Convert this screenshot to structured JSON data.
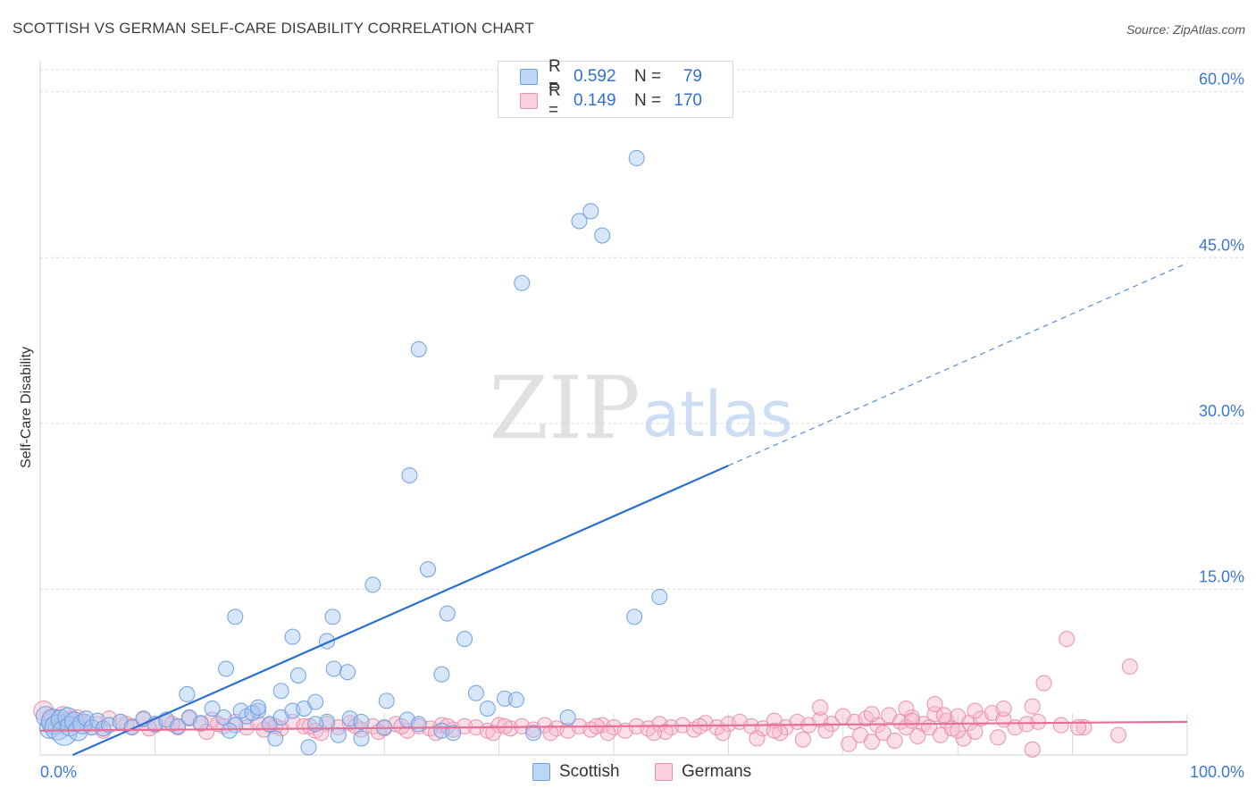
{
  "header": {
    "title": "SCOTTISH VS GERMAN SELF-CARE DISABILITY CORRELATION CHART",
    "source": "Source: ZipAtlas.com"
  },
  "watermark": {
    "zip": "ZIP",
    "atlas": "atlas"
  },
  "legend": {
    "series": [
      {
        "name": "Scottish",
        "r_label": "R =",
        "r_value": "0.592",
        "n_label": "N =",
        "n_value": "79",
        "fill": "#a9c8f2",
        "stroke": "#6d9fe0"
      },
      {
        "name": "Germans",
        "r_label": "R =",
        "r_value": "0.149",
        "n_label": "N =",
        "n_value": "170",
        "fill": "#f7b9cb",
        "stroke": "#e890ab"
      }
    ]
  },
  "colors": {
    "scottish_line": "#2a6fd3",
    "germans_line": "#e46f97",
    "tick_label": "#3a78d4",
    "grid": "#dcdcdc"
  },
  "chart_data": {
    "type": "scatter",
    "title": "SCOTTISH VS GERMAN SELF-CARE DISABILITY CORRELATION CHART",
    "xlabel": "",
    "ylabel": "Self-Care Disability",
    "xlim": [
      0,
      100
    ],
    "ylim": [
      0,
      62
    ],
    "x_tick_labels": [
      "0.0%",
      "100.0%"
    ],
    "y_ticks": [
      15,
      30,
      45,
      60
    ],
    "y_tick_labels": [
      "15.0%",
      "30.0%",
      "45.0%",
      "60.0%"
    ],
    "grid": true,
    "series": [
      {
        "name": "Scottish",
        "trend": {
          "x0": 0,
          "y0": -1.3,
          "x1": 100,
          "y1": 44.5,
          "solid_until_x": 60
        },
        "points": [
          [
            0.5,
            3.5,
            2
          ],
          [
            0.8,
            2.4,
            2
          ],
          [
            1.2,
            3.0,
            3
          ],
          [
            1.5,
            2.5,
            3
          ],
          [
            1.8,
            3.2,
            2
          ],
          [
            2.1,
            2.0,
            3
          ],
          [
            2.4,
            3.4,
            2
          ],
          [
            2.6,
            2.6,
            2
          ],
          [
            3.0,
            3.0,
            2
          ],
          [
            3.3,
            2.2,
            2
          ],
          [
            3.7,
            2.8,
            2
          ],
          [
            4.0,
            3.3,
            1
          ],
          [
            4.5,
            2.5,
            1
          ],
          [
            5.0,
            3.1,
            1
          ],
          [
            5.5,
            2.4,
            1
          ],
          [
            6.0,
            2.7,
            1
          ],
          [
            7.0,
            3.0,
            1
          ],
          [
            8.0,
            2.5,
            1
          ],
          [
            9.0,
            3.3,
            1
          ],
          [
            10.0,
            2.8,
            1
          ],
          [
            11.0,
            3.2,
            1
          ],
          [
            12.0,
            2.6,
            1
          ],
          [
            13.0,
            3.4,
            1
          ],
          [
            14.0,
            2.9,
            1
          ],
          [
            16.0,
            3.4,
            1
          ],
          [
            17.0,
            2.7,
            1
          ],
          [
            15.0,
            4.2,
            1
          ],
          [
            16.5,
            2.2,
            1
          ],
          [
            18.0,
            3.5,
            1
          ],
          [
            19.0,
            4.0,
            1
          ],
          [
            20.0,
            2.8,
            1
          ],
          [
            21.0,
            3.4,
            1
          ],
          [
            25.0,
            3.0,
            1
          ],
          [
            27.0,
            3.3,
            1
          ],
          [
            30.0,
            2.5,
            1
          ],
          [
            32.0,
            3.2,
            1
          ],
          [
            33.0,
            2.8,
            1
          ],
          [
            35.0,
            2.2,
            1
          ],
          [
            43.0,
            2.0,
            1
          ],
          [
            46.0,
            3.4,
            1
          ],
          [
            17.5,
            4.0,
            1
          ],
          [
            18.5,
            3.8,
            1
          ],
          [
            22.0,
            4.0,
            1
          ],
          [
            23.0,
            4.2,
            1
          ],
          [
            24.0,
            2.8,
            1
          ],
          [
            26.0,
            1.8,
            1
          ],
          [
            28.0,
            3.0,
            1
          ],
          [
            36.0,
            2.0,
            1
          ],
          [
            12.8,
            5.5,
            1
          ],
          [
            16.2,
            7.8,
            1
          ],
          [
            17.0,
            12.5,
            1
          ],
          [
            19.0,
            4.3,
            1
          ],
          [
            21.0,
            5.8,
            1
          ],
          [
            22.0,
            10.7,
            1
          ],
          [
            22.5,
            7.2,
            1
          ],
          [
            24.0,
            4.8,
            1
          ],
          [
            25.0,
            10.3,
            1
          ],
          [
            25.5,
            12.5,
            1
          ],
          [
            25.6,
            7.8,
            1
          ],
          [
            26.8,
            7.5,
            1
          ],
          [
            30.2,
            4.9,
            1
          ],
          [
            32.2,
            25.3,
            1
          ],
          [
            33.0,
            36.7,
            1
          ],
          [
            33.8,
            16.8,
            1
          ],
          [
            35.0,
            7.3,
            1
          ],
          [
            35.5,
            12.8,
            1
          ],
          [
            37.0,
            10.5,
            1
          ],
          [
            38.0,
            5.6,
            1
          ],
          [
            39.0,
            4.2,
            1
          ],
          [
            40.5,
            5.1,
            1
          ],
          [
            41.5,
            5.0,
            1
          ],
          [
            42.0,
            42.7,
            1
          ],
          [
            47.0,
            48.3,
            1
          ],
          [
            48.0,
            49.2,
            1
          ],
          [
            49.0,
            47.0,
            1
          ],
          [
            52.0,
            54.0,
            1
          ],
          [
            51.8,
            12.5,
            1
          ],
          [
            54.0,
            14.3,
            1
          ],
          [
            29.0,
            15.4,
            1
          ],
          [
            20.5,
            1.5,
            1
          ],
          [
            23.4,
            0.7,
            1
          ],
          [
            28.0,
            1.5,
            1
          ]
        ]
      },
      {
        "name": "Germans",
        "trend": {
          "x0": 0,
          "y0": 2.2,
          "x1": 100,
          "y1": 3.0
        },
        "points": [
          [
            0.3,
            4.0,
            2
          ],
          [
            1.0,
            3.3,
            2
          ],
          [
            1.5,
            2.8,
            2
          ],
          [
            2.0,
            3.5,
            2
          ],
          [
            2.5,
            3.0,
            2
          ],
          [
            3.2,
            3.2,
            2
          ],
          [
            4.0,
            3.0,
            1
          ],
          [
            4.5,
            2.5,
            1
          ],
          [
            5.0,
            2.8,
            1
          ],
          [
            6.0,
            3.3,
            1
          ],
          [
            7.0,
            3.0,
            1
          ],
          [
            8.0,
            2.6,
            1
          ],
          [
            9.0,
            3.2,
            1
          ],
          [
            10.0,
            2.7,
            1
          ],
          [
            11.0,
            3.0,
            1
          ],
          [
            12.0,
            2.5,
            1
          ],
          [
            13.0,
            3.3,
            1
          ],
          [
            14.0,
            2.8,
            1
          ],
          [
            15.0,
            3.2,
            1
          ],
          [
            16.0,
            2.6,
            1
          ],
          [
            17.0,
            3.0,
            1
          ],
          [
            18.0,
            2.5,
            1
          ],
          [
            19.0,
            2.9,
            1
          ],
          [
            20.0,
            2.7,
            1
          ],
          [
            21.0,
            2.4,
            1
          ],
          [
            22.0,
            3.0,
            1
          ],
          [
            23.0,
            2.6,
            1
          ],
          [
            24.0,
            2.2,
            1
          ],
          [
            25.0,
            2.8,
            1
          ],
          [
            26.0,
            2.5,
            1
          ],
          [
            27.0,
            2.9,
            1
          ],
          [
            28.0,
            2.3,
            1
          ],
          [
            29.0,
            2.6,
            1
          ],
          [
            30.0,
            2.4,
            1
          ],
          [
            31.0,
            2.8,
            1
          ],
          [
            32.0,
            2.2,
            1
          ],
          [
            33.0,
            2.6,
            1
          ],
          [
            34.0,
            2.4,
            1
          ],
          [
            35.0,
            2.7,
            1
          ],
          [
            36.0,
            2.3,
            1
          ],
          [
            37.0,
            2.6,
            1
          ],
          [
            38.0,
            2.5,
            1
          ],
          [
            39.0,
            2.2,
            1
          ],
          [
            40.0,
            2.7,
            1
          ],
          [
            41.0,
            2.4,
            1
          ],
          [
            42.0,
            2.6,
            1
          ],
          [
            43.0,
            2.3,
            1
          ],
          [
            44.0,
            2.7,
            1
          ],
          [
            45.0,
            2.4,
            1
          ],
          [
            46.0,
            2.2,
            1
          ],
          [
            47.0,
            2.6,
            1
          ],
          [
            48.0,
            2.3,
            1
          ],
          [
            49.0,
            2.7,
            1
          ],
          [
            50.0,
            2.5,
            1
          ],
          [
            51.0,
            2.2,
            1
          ],
          [
            52.0,
            2.6,
            1
          ],
          [
            53.0,
            2.4,
            1
          ],
          [
            54.0,
            2.8,
            1
          ],
          [
            55.0,
            2.5,
            1
          ],
          [
            56.0,
            2.7,
            1
          ],
          [
            57.0,
            2.3,
            1
          ],
          [
            58.0,
            2.9,
            1
          ],
          [
            59.0,
            2.5,
            1
          ],
          [
            60.0,
            2.8,
            1
          ],
          [
            61.0,
            3.0,
            1
          ],
          [
            62.0,
            2.6,
            1
          ],
          [
            63.0,
            2.4,
            1
          ],
          [
            64.0,
            3.1,
            1
          ],
          [
            65.0,
            2.5,
            1
          ],
          [
            66.0,
            3.0,
            1
          ],
          [
            67.0,
            2.7,
            1
          ],
          [
            68.0,
            3.2,
            1
          ],
          [
            69.0,
            2.8,
            1
          ],
          [
            70.0,
            3.5,
            1
          ],
          [
            71.0,
            3.0,
            1
          ],
          [
            72.0,
            3.3,
            1
          ],
          [
            73.0,
            2.7,
            1
          ],
          [
            74.0,
            3.6,
            1
          ],
          [
            75.0,
            3.0,
            1
          ],
          [
            76.0,
            3.4,
            1
          ],
          [
            77.0,
            2.8,
            1
          ],
          [
            78.0,
            3.7,
            1
          ],
          [
            79.0,
            3.1,
            1
          ],
          [
            80.0,
            3.5,
            1
          ],
          [
            81.0,
            2.9,
            1
          ],
          [
            82.0,
            3.3,
            1
          ],
          [
            83.0,
            3.8,
            1
          ],
          [
            84.0,
            3.2,
            1
          ],
          [
            85.0,
            2.5,
            1
          ],
          [
            87.0,
            3.0,
            1
          ],
          [
            89.0,
            2.7,
            1
          ],
          [
            91.0,
            2.5,
            1
          ],
          [
            0.8,
            3.0,
            1
          ],
          [
            5.5,
            2.2,
            1
          ],
          [
            9.5,
            2.4,
            1
          ],
          [
            14.5,
            2.1,
            1
          ],
          [
            19.5,
            2.3,
            1
          ],
          [
            24.5,
            2.0,
            1
          ],
          [
            29.5,
            2.1,
            1
          ],
          [
            34.5,
            2.0,
            1
          ],
          [
            39.5,
            2.0,
            1
          ],
          [
            44.5,
            2.0,
            1
          ],
          [
            49.5,
            2.0,
            1
          ],
          [
            54.5,
            2.1,
            1
          ],
          [
            59.5,
            2.0,
            1
          ],
          [
            62.5,
            1.5,
            1
          ],
          [
            64.5,
            2.0,
            1
          ],
          [
            66.5,
            1.4,
            1
          ],
          [
            68.5,
            2.2,
            1
          ],
          [
            70.5,
            1.0,
            1
          ],
          [
            71.5,
            1.8,
            1
          ],
          [
            72.5,
            1.2,
            1
          ],
          [
            73.5,
            2.0,
            1
          ],
          [
            74.5,
            1.3,
            1
          ],
          [
            75.5,
            2.5,
            1
          ],
          [
            76.5,
            1.7,
            1
          ],
          [
            77.5,
            2.5,
            1
          ],
          [
            78.5,
            1.8,
            1
          ],
          [
            79.5,
            2.4,
            1
          ],
          [
            80.5,
            1.5,
            1
          ],
          [
            81.5,
            2.1,
            1
          ],
          [
            83.5,
            1.6,
            1
          ],
          [
            86.5,
            0.5,
            1
          ],
          [
            94.0,
            1.8,
            1
          ],
          [
            68.0,
            4.3,
            1
          ],
          [
            72.5,
            3.7,
            1
          ],
          [
            75.5,
            4.2,
            1
          ],
          [
            78.0,
            4.6,
            1
          ],
          [
            81.5,
            4.0,
            1
          ],
          [
            84.0,
            4.2,
            1
          ],
          [
            86.5,
            4.4,
            1
          ],
          [
            87.5,
            6.5,
            1
          ],
          [
            86.0,
            2.8,
            1
          ],
          [
            89.5,
            10.5,
            1
          ],
          [
            90.5,
            2.5,
            1
          ],
          [
            95.0,
            8.0,
            1
          ],
          [
            78.8,
            3.6,
            1
          ],
          [
            80.0,
            2.2,
            1
          ],
          [
            76.0,
            3.1,
            1
          ],
          [
            64.0,
            2.2,
            1
          ],
          [
            57.5,
            2.6,
            1
          ],
          [
            53.5,
            2.0,
            1
          ],
          [
            48.5,
            2.6,
            1
          ],
          [
            40.5,
            2.6,
            1
          ],
          [
            35.5,
            2.6,
            1
          ],
          [
            31.5,
            2.6,
            1
          ],
          [
            27.5,
            2.6,
            1
          ],
          [
            23.5,
            2.6,
            1
          ],
          [
            20.5,
            2.6,
            1
          ],
          [
            15.5,
            2.8,
            1
          ],
          [
            11.5,
            2.8,
            1
          ],
          [
            7.5,
            2.8,
            1
          ]
        ]
      }
    ]
  }
}
